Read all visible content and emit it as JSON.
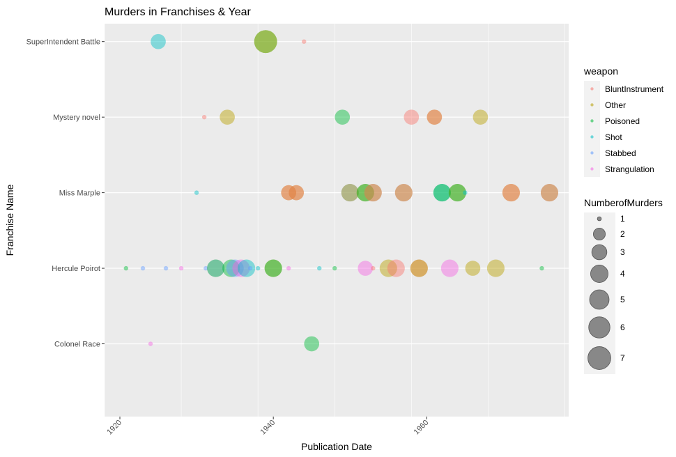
{
  "chart_data": {
    "type": "scatter",
    "title": "Murders in Franchises & Year",
    "xlabel": "Publication Date",
    "ylabel": "Franchise Name",
    "xlim": [
      1918,
      1978.5
    ],
    "x_ticks": [
      "1920",
      "1940",
      "1960"
    ],
    "x_tick_values": [
      1920,
      1940,
      1960
    ],
    "categories": [
      "Colonel Race",
      "Hercule Poirot",
      "Miss Marple",
      "Mystery novel",
      "SuperIntendent Battle"
    ],
    "grid": true,
    "legend_position": "right",
    "color_legend": {
      "title": "weapon",
      "entries": [
        {
          "label": "BluntInstrument",
          "color": "#F8766D"
        },
        {
          "label": "Other",
          "color": "#B79F00"
        },
        {
          "label": "Poisoned",
          "color": "#00BA38"
        },
        {
          "label": "Shot",
          "color": "#00BFC4"
        },
        {
          "label": "Stabbed",
          "color": "#619CFF"
        },
        {
          "label": "Strangulation",
          "color": "#F564E3"
        }
      ]
    },
    "size_legend": {
      "title": "NumberofMurders",
      "values": [
        1,
        2,
        3,
        4,
        5,
        6,
        7
      ]
    },
    "points": [
      {
        "franchise": "SuperIntendent Battle",
        "year": 1925,
        "weapon": "Shot",
        "murders": 3
      },
      {
        "franchise": "SuperIntendent Battle",
        "year": 1939,
        "weapon": "Poisoned",
        "murders": 7
      },
      {
        "franchise": "SuperIntendent Battle",
        "year": 1939,
        "weapon": "Other",
        "murders": 7
      },
      {
        "franchise": "SuperIntendent Battle",
        "year": 1944,
        "weapon": "BluntInstrument",
        "murders": 1
      },
      {
        "franchise": "Mystery novel",
        "year": 1931,
        "weapon": "BluntInstrument",
        "murders": 1
      },
      {
        "franchise": "Mystery novel",
        "year": 1934,
        "weapon": "Other",
        "murders": 3
      },
      {
        "franchise": "Mystery novel",
        "year": 1949,
        "weapon": "Poisoned",
        "murders": 3
      },
      {
        "franchise": "Mystery novel",
        "year": 1958,
        "weapon": "BluntInstrument",
        "murders": 3
      },
      {
        "franchise": "Mystery novel",
        "year": 1961,
        "weapon": "Other",
        "murders": 3
      },
      {
        "franchise": "Mystery novel",
        "year": 1961,
        "weapon": "BluntInstrument",
        "murders": 3
      },
      {
        "franchise": "Mystery novel",
        "year": 1967,
        "weapon": "Other",
        "murders": 3
      },
      {
        "franchise": "Miss Marple",
        "year": 1930,
        "weapon": "Shot",
        "murders": 1
      },
      {
        "franchise": "Miss Marple",
        "year": 1942,
        "weapon": "Other",
        "murders": 3
      },
      {
        "franchise": "Miss Marple",
        "year": 1942,
        "weapon": "BluntInstrument",
        "murders": 3
      },
      {
        "franchise": "Miss Marple",
        "year": 1943,
        "weapon": "Other",
        "murders": 3
      },
      {
        "franchise": "Miss Marple",
        "year": 1943,
        "weapon": "BluntInstrument",
        "murders": 3
      },
      {
        "franchise": "Miss Marple",
        "year": 1950,
        "weapon": "Stabbed",
        "murders": 4
      },
      {
        "franchise": "Miss Marple",
        "year": 1950,
        "weapon": "Other",
        "murders": 4
      },
      {
        "franchise": "Miss Marple",
        "year": 1952,
        "weapon": "Other",
        "murders": 4
      },
      {
        "franchise": "Miss Marple",
        "year": 1952,
        "weapon": "Poisoned",
        "murders": 4
      },
      {
        "franchise": "Miss Marple",
        "year": 1953,
        "weapon": "Strangulation",
        "murders": 4
      },
      {
        "franchise": "Miss Marple",
        "year": 1953,
        "weapon": "Other",
        "murders": 4
      },
      {
        "franchise": "Miss Marple",
        "year": 1957,
        "weapon": "Strangulation",
        "murders": 4
      },
      {
        "franchise": "Miss Marple",
        "year": 1957,
        "weapon": "Other",
        "murders": 4
      },
      {
        "franchise": "Miss Marple",
        "year": 1962,
        "weapon": "Shot",
        "murders": 4
      },
      {
        "franchise": "Miss Marple",
        "year": 1962,
        "weapon": "Poisoned",
        "murders": 4
      },
      {
        "franchise": "Miss Marple",
        "year": 1964,
        "weapon": "Other",
        "murders": 4
      },
      {
        "franchise": "Miss Marple",
        "year": 1964,
        "weapon": "Poisoned",
        "murders": 4
      },
      {
        "franchise": "Miss Marple",
        "year": 1965,
        "weapon": "Shot",
        "murders": 1
      },
      {
        "franchise": "Miss Marple",
        "year": 1971,
        "weapon": "Other",
        "murders": 4
      },
      {
        "franchise": "Miss Marple",
        "year": 1971,
        "weapon": "BluntInstrument",
        "murders": 4
      },
      {
        "franchise": "Miss Marple",
        "year": 1976,
        "weapon": "Strangulation",
        "murders": 4
      },
      {
        "franchise": "Miss Marple",
        "year": 1976,
        "weapon": "Other",
        "murders": 4
      },
      {
        "franchise": "Hercule Poirot",
        "year": 1920.8,
        "weapon": "Poisoned",
        "murders": 1
      },
      {
        "franchise": "Hercule Poirot",
        "year": 1923,
        "weapon": "Stabbed",
        "murders": 1
      },
      {
        "franchise": "Hercule Poirot",
        "year": 1926,
        "weapon": "Stabbed",
        "murders": 1
      },
      {
        "franchise": "Hercule Poirot",
        "year": 1928,
        "weapon": "Strangulation",
        "murders": 1
      },
      {
        "franchise": "Hercule Poirot",
        "year": 1931.2,
        "weapon": "Stabbed",
        "murders": 1
      },
      {
        "franchise": "Hercule Poirot",
        "year": 1932.5,
        "weapon": "Other",
        "murders": 4
      },
      {
        "franchise": "Hercule Poirot",
        "year": 1932.5,
        "weapon": "Shot",
        "murders": 4
      },
      {
        "franchise": "Hercule Poirot",
        "year": 1934.5,
        "weapon": "Poisoned",
        "murders": 4
      },
      {
        "franchise": "Hercule Poirot",
        "year": 1935,
        "weapon": "Stabbed",
        "murders": 4
      },
      {
        "franchise": "Hercule Poirot",
        "year": 1935.8,
        "weapon": "Strangulation",
        "murders": 4
      },
      {
        "franchise": "Hercule Poirot",
        "year": 1936.5,
        "weapon": "Shot",
        "murders": 4
      },
      {
        "franchise": "Hercule Poirot",
        "year": 1937,
        "weapon": "Stabbed",
        "murders": 1
      },
      {
        "franchise": "Hercule Poirot",
        "year": 1938,
        "weapon": "Shot",
        "murders": 1
      },
      {
        "franchise": "Hercule Poirot",
        "year": 1940,
        "weapon": "Other",
        "murders": 4
      },
      {
        "franchise": "Hercule Poirot",
        "year": 1940,
        "weapon": "Poisoned",
        "murders": 4
      },
      {
        "franchise": "Hercule Poirot",
        "year": 1942,
        "weapon": "Strangulation",
        "murders": 1
      },
      {
        "franchise": "Hercule Poirot",
        "year": 1946,
        "weapon": "Shot",
        "murders": 1
      },
      {
        "franchise": "Hercule Poirot",
        "year": 1948,
        "weapon": "Poisoned",
        "murders": 1
      },
      {
        "franchise": "Hercule Poirot",
        "year": 1952,
        "weapon": "Strangulation",
        "murders": 3
      },
      {
        "franchise": "Hercule Poirot",
        "year": 1953,
        "weapon": "BluntInstrument",
        "murders": 1
      },
      {
        "franchise": "Hercule Poirot",
        "year": 1955,
        "weapon": "Other",
        "murders": 4
      },
      {
        "franchise": "Hercule Poirot",
        "year": 1956,
        "weapon": "BluntInstrument",
        "murders": 4
      },
      {
        "franchise": "Hercule Poirot",
        "year": 1959,
        "weapon": "BluntInstrument",
        "murders": 4
      },
      {
        "franchise": "Hercule Poirot",
        "year": 1959,
        "weapon": "Other",
        "murders": 4
      },
      {
        "franchise": "Hercule Poirot",
        "year": 1963,
        "weapon": "Strangulation",
        "murders": 4
      },
      {
        "franchise": "Hercule Poirot",
        "year": 1966,
        "weapon": "Other",
        "murders": 3
      },
      {
        "franchise": "Hercule Poirot",
        "year": 1969,
        "weapon": "Other",
        "murders": 4
      },
      {
        "franchise": "Hercule Poirot",
        "year": 1975,
        "weapon": "Poisoned",
        "murders": 1
      },
      {
        "franchise": "Colonel Race",
        "year": 1924,
        "weapon": "Strangulation",
        "murders": 1
      },
      {
        "franchise": "Colonel Race",
        "year": 1945,
        "weapon": "Poisoned",
        "murders": 3
      }
    ]
  }
}
